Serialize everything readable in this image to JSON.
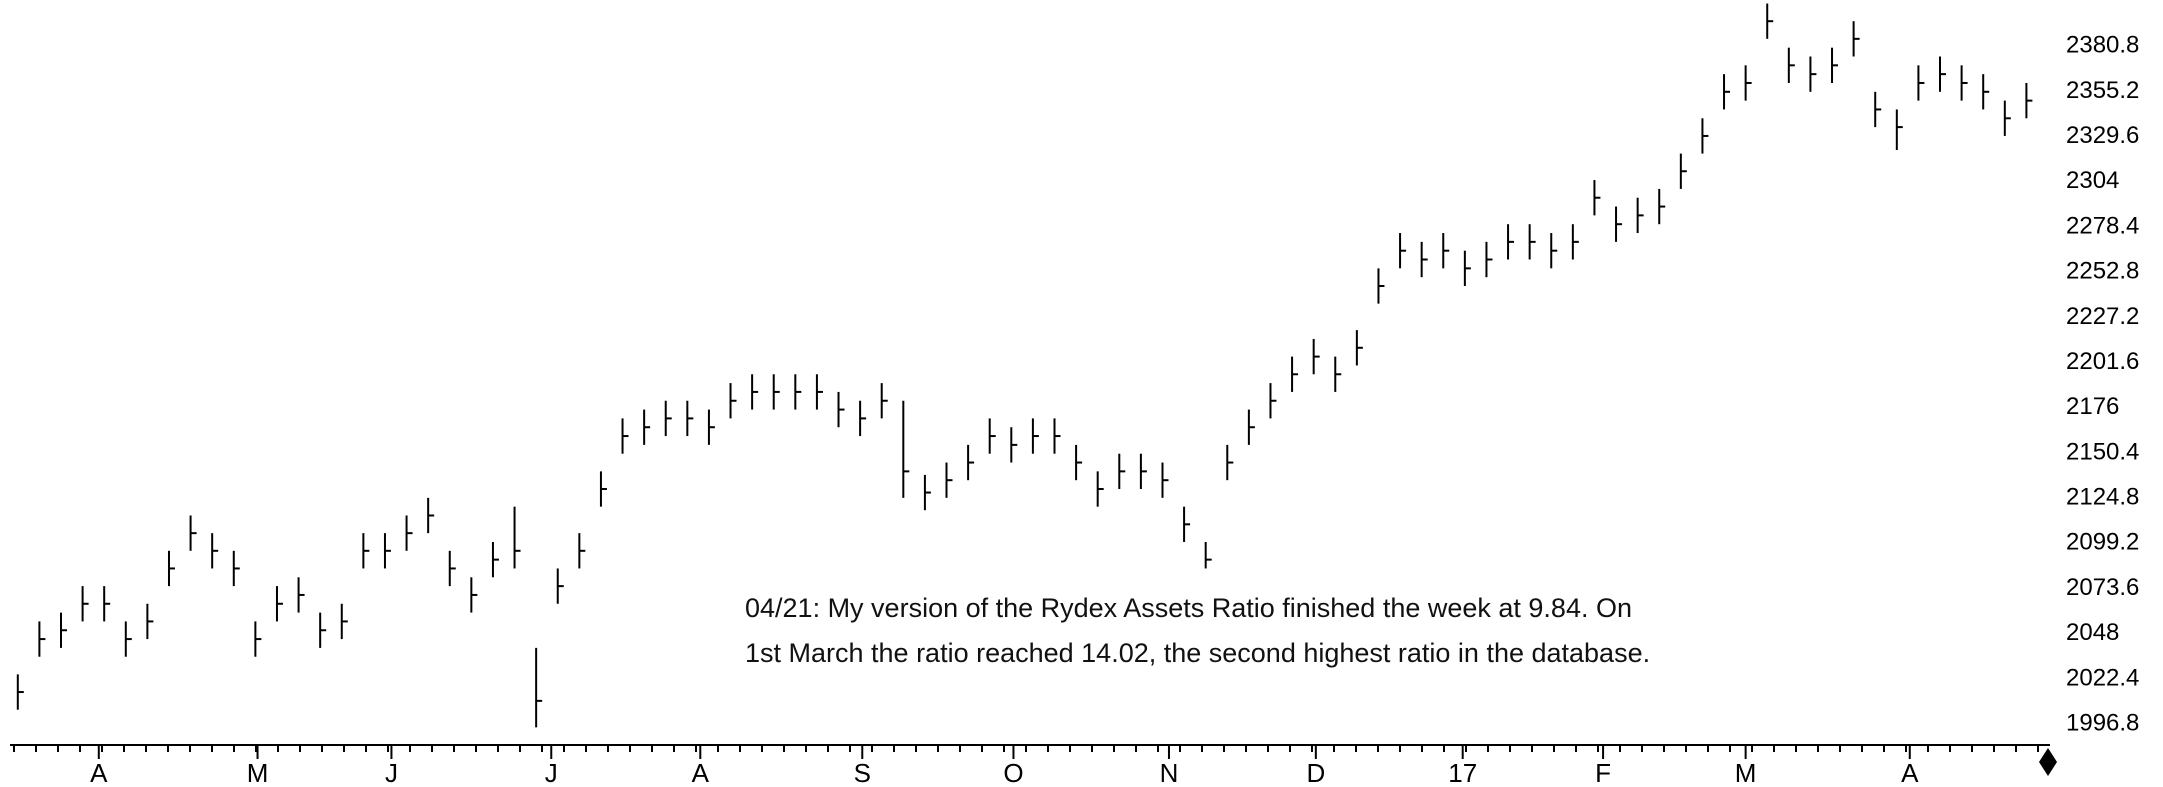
{
  "chart_data": {
    "type": "ohlc",
    "color": "#000000",
    "annotations": [
      "04/21: My version of the Rydex Assets Ratio finished the week at 9.84.  On",
      "1st March the ratio reached 14.02, the second highest ratio in the database."
    ],
    "x": [
      0,
      1,
      2,
      3,
      4,
      5,
      6,
      7,
      8,
      9,
      10,
      11,
      12,
      13,
      14,
      15,
      16,
      17,
      18,
      19,
      20,
      21,
      22,
      23,
      24,
      25,
      26,
      27,
      28,
      29,
      30,
      31,
      32,
      33,
      34,
      35,
      36,
      37,
      38,
      39,
      40,
      41,
      42,
      43,
      44,
      45,
      46,
      47,
      48,
      49,
      50,
      51,
      52,
      53,
      54,
      55,
      56,
      57,
      58,
      59,
      60,
      61,
      62,
      63,
      64,
      65,
      66,
      67,
      68,
      69,
      70,
      71,
      72,
      73,
      74,
      75,
      76,
      77,
      78,
      79,
      80,
      81,
      82,
      83,
      84,
      85,
      86,
      87,
      88,
      89,
      90,
      91,
      92,
      93
    ],
    "high": [
      2025,
      2055,
      2060,
      2075,
      2075,
      2055,
      2065,
      2095,
      2115,
      2105,
      2095,
      2055,
      2075,
      2080,
      2060,
      2065,
      2105,
      2105,
      2115,
      2125,
      2095,
      2080,
      2100,
      2120,
      2040,
      2085,
      2105,
      2140,
      2170,
      2175,
      2180,
      2180,
      2175,
      2190,
      2195,
      2195,
      2195,
      2195,
      2185,
      2180,
      2190,
      2180,
      2138,
      2145,
      2155,
      2170,
      2165,
      2170,
      2170,
      2155,
      2140,
      2150,
      2150,
      2145,
      2120,
      2100,
      2155,
      2175,
      2190,
      2205,
      2215,
      2205,
      2220,
      2255,
      2275,
      2270,
      2275,
      2265,
      2270,
      2280,
      2280,
      2275,
      2280,
      2305,
      2290,
      2295,
      2300,
      2320,
      2340,
      2365,
      2370,
      2405,
      2380,
      2375,
      2380,
      2395,
      2355,
      2345,
      2370,
      2375,
      2370,
      2365,
      2350,
      2360
    ],
    "low": [
      2005,
      2035,
      2040,
      2055,
      2055,
      2035,
      2045,
      2075,
      2095,
      2085,
      2075,
      2035,
      2055,
      2060,
      2040,
      2045,
      2085,
      2085,
      2095,
      2105,
      2075,
      2060,
      2080,
      2085,
      1995,
      2065,
      2085,
      2120,
      2150,
      2155,
      2160,
      2160,
      2155,
      2170,
      2175,
      2175,
      2175,
      2175,
      2165,
      2160,
      2170,
      2125,
      2118,
      2125,
      2135,
      2150,
      2145,
      2150,
      2150,
      2135,
      2120,
      2130,
      2130,
      2125,
      2100,
      2085,
      2135,
      2155,
      2170,
      2185,
      2195,
      2185,
      2200,
      2235,
      2255,
      2250,
      2255,
      2245,
      2250,
      2260,
      2260,
      2255,
      2260,
      2285,
      2270,
      2275,
      2280,
      2300,
      2320,
      2345,
      2350,
      2385,
      2360,
      2355,
      2360,
      2375,
      2335,
      2322,
      2350,
      2355,
      2350,
      2345,
      2330,
      2340
    ],
    "close": [
      2015,
      2045,
      2050,
      2065,
      2065,
      2045,
      2055,
      2085,
      2105,
      2095,
      2085,
      2045,
      2065,
      2070,
      2050,
      2055,
      2095,
      2095,
      2105,
      2115,
      2085,
      2070,
      2090,
      2095,
      2010,
      2075,
      2095,
      2130,
      2160,
      2165,
      2170,
      2170,
      2165,
      2180,
      2185,
      2185,
      2185,
      2185,
      2175,
      2170,
      2180,
      2140,
      2128,
      2135,
      2145,
      2160,
      2155,
      2160,
      2160,
      2145,
      2130,
      2140,
      2140,
      2135,
      2110,
      2090,
      2145,
      2165,
      2180,
      2195,
      2205,
      2195,
      2210,
      2245,
      2265,
      2260,
      2265,
      2255,
      2260,
      2270,
      2270,
      2265,
      2270,
      2295,
      2280,
      2285,
      2290,
      2310,
      2330,
      2355,
      2360,
      2395,
      2370,
      2365,
      2370,
      2385,
      2345,
      2335,
      2360,
      2365,
      2360,
      2355,
      2340,
      2350
    ],
    "xlim": [
      -0.5,
      94
    ],
    "xticks": [
      {
        "value": 3.75,
        "label": "A"
      },
      {
        "value": 11.1,
        "label": "M"
      },
      {
        "value": 17.3,
        "label": "J"
      },
      {
        "value": 24.7,
        "label": "J"
      },
      {
        "value": 31.6,
        "label": "A"
      },
      {
        "value": 39.1,
        "label": "S"
      },
      {
        "value": 46.1,
        "label": "O"
      },
      {
        "value": 53.3,
        "label": "N"
      },
      {
        "value": 60.1,
        "label": "D"
      },
      {
        "value": 66.9,
        "label": "17"
      },
      {
        "value": 73.4,
        "label": "F"
      },
      {
        "value": 80,
        "label": "M"
      },
      {
        "value": 87.6,
        "label": "A"
      }
    ],
    "ylim": [
      1985,
      2407
    ],
    "yticks": [
      1996.8,
      2022.4,
      2048,
      2073.6,
      2099.2,
      2124.8,
      2150.4,
      2176,
      2201.6,
      2227.2,
      2252.8,
      2278.4,
      2304,
      2329.6,
      2355.2,
      2380.8
    ]
  }
}
